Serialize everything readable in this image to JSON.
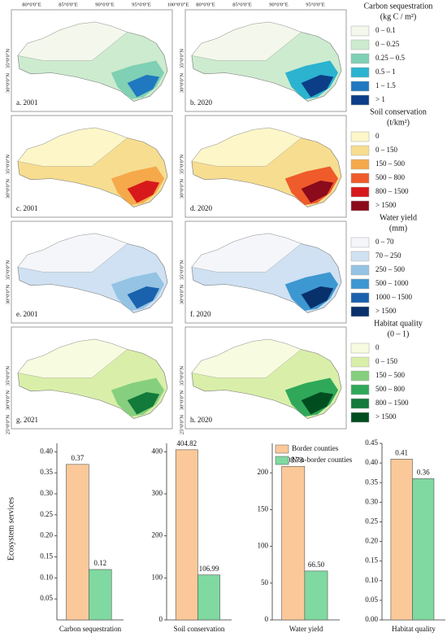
{
  "maps": {
    "lon_labels_left": [
      "80°0'0\"E",
      "85°0'0\"E",
      "90°0'0\"E",
      "95°0'0\"E",
      "100°0'0\"E"
    ],
    "lon_labels_right": [
      "80°0'0\"E",
      "85°0'0\"E",
      "90°0'0\"E",
      "95°0'0\"E"
    ],
    "rows": [
      {
        "panels": [
          "a. 2001",
          "b. 2020"
        ],
        "lat_labels": [
          "35°0'0\"N",
          "30°0'0\"N"
        ],
        "legend": {
          "title": "Carbon sequestration",
          "unit": "(kg C / m²)",
          "items": [
            {
              "label": "0 – 0.1",
              "color": "#f4f8ec"
            },
            {
              "label": "0 – 0.25",
              "color": "#cdebcf"
            },
            {
              "label": "0.25 – 0.5",
              "color": "#7fd0b4"
            },
            {
              "label": "0.5 – 1",
              "color": "#2bb3cf"
            },
            {
              "label": "1 – 1.5",
              "color": "#1f78c0"
            },
            {
              "label": "> 1",
              "color": "#0b3e86"
            }
          ]
        }
      },
      {
        "panels": [
          "c. 2001",
          "d. 2020"
        ],
        "lat_labels": [
          "35°0'0\"N",
          "30°0'0\"N"
        ],
        "legend": {
          "title": "Soil conservation",
          "unit": "(t/km²)",
          "items": [
            {
              "label": "0",
              "color": "#fdf6c8"
            },
            {
              "label": "0 – 150",
              "color": "#f7dd90"
            },
            {
              "label": "150 – 500",
              "color": "#f5a94a"
            },
            {
              "label": "500 – 800",
              "color": "#ef5b2b"
            },
            {
              "label": "800 – 1500",
              "color": "#d7191c"
            },
            {
              "label": "> 1500",
              "color": "#8b0a1c"
            }
          ]
        }
      },
      {
        "panels": [
          "e. 2001",
          "f. 2020"
        ],
        "lat_labels": [
          "35°0'0\"N",
          "30°0'0\"N"
        ],
        "legend": {
          "title": "Water yield",
          "unit": "(mm)",
          "items": [
            {
              "label": "0 – 70",
              "color": "#f4f6fa"
            },
            {
              "label": "70 – 250",
              "color": "#cfe1f2"
            },
            {
              "label": "250 – 500",
              "color": "#94c3e3"
            },
            {
              "label": "500 – 1000",
              "color": "#3d97d1"
            },
            {
              "label": "1000 – 1500",
              "color": "#1a62ad"
            },
            {
              "label": "> 1500",
              "color": "#08306b"
            }
          ]
        }
      },
      {
        "panels": [
          "g. 2021",
          "h. 2020"
        ],
        "lat_labels": [
          "35°0'0\"N",
          "30°0'0\"N",
          "25°0'0\"N"
        ],
        "legend": {
          "title": "Habitat quality",
          "unit": "(0 – 1)",
          "items": [
            {
              "label": "0",
              "color": "#f7fbe0"
            },
            {
              "label": "0 – 150",
              "color": "#d9efa9"
            },
            {
              "label": "150 – 500",
              "color": "#86cf7e"
            },
            {
              "label": "500 – 800",
              "color": "#2fa85a"
            },
            {
              "label": "800 – 1500",
              "color": "#127a3a"
            },
            {
              "label": "> 1500",
              "color": "#004d20"
            }
          ]
        }
      }
    ]
  },
  "chart_data": [
    {
      "type": "bar",
      "xlabel": "Carbon sequestration",
      "ylabel": "Ecosystem services",
      "series": [
        {
          "color": "#fbc999",
          "values": [
            0.37
          ]
        },
        {
          "color": "#7fd9a0",
          "values": [
            0.12
          ]
        }
      ],
      "ylim": [
        0,
        0.42
      ],
      "yticks": [
        {
          "value": 0.05,
          "label": "0.05"
        },
        {
          "value": 0.1,
          "label": "0.10"
        },
        {
          "value": 0.15,
          "label": "0.15"
        },
        {
          "value": 0.2,
          "label": "0.20"
        },
        {
          "value": 0.25,
          "label": "0.25"
        },
        {
          "value": 0.3,
          "label": "0.30"
        },
        {
          "value": 0.35,
          "label": "0.35"
        },
        {
          "value": 0.4,
          "label": "0.40"
        }
      ]
    },
    {
      "type": "bar",
      "xlabel": "Soil conservation",
      "series": [
        {
          "color": "#fbc999",
          "values": [
            404.82
          ]
        },
        {
          "color": "#7fd9a0",
          "values": [
            106.99
          ]
        }
      ],
      "ylim": [
        0,
        420
      ],
      "yticks": [
        0,
        100,
        200,
        300,
        400
      ]
    },
    {
      "type": "bar",
      "xlabel": "Water yield",
      "legend": true,
      "series": [
        {
          "name": "Border counties",
          "color": "#fbc999",
          "values": [
            208.73
          ]
        },
        {
          "name": "Non-border counties",
          "color": "#7fd9a0",
          "values": [
            66.5
          ],
          "value_labels": [
            "66.50"
          ]
        }
      ],
      "ylim": [
        0,
        240
      ],
      "yticks": [
        0,
        50,
        100,
        150,
        200
      ]
    },
    {
      "type": "bar",
      "xlabel": "Habitat quality",
      "series": [
        {
          "color": "#fbc999",
          "values": [
            0.41
          ]
        },
        {
          "color": "#7fd9a0",
          "values": [
            0.36
          ]
        }
      ],
      "ylim": [
        0,
        0.45
      ],
      "yticks": [
        {
          "value": 0,
          "label": "0.00"
        },
        {
          "value": 0.05,
          "label": "0.05"
        },
        {
          "value": 0.1,
          "label": "0.10"
        },
        {
          "value": 0.15,
          "label": "0.15"
        },
        {
          "value": 0.2,
          "label": "0.20"
        },
        {
          "value": 0.25,
          "label": "0.25"
        },
        {
          "value": 0.3,
          "label": "0.30"
        },
        {
          "value": 0.35,
          "label": "0.35"
        },
        {
          "value": 0.4,
          "label": "0.40"
        },
        {
          "value": 0.45,
          "label": "0.45"
        }
      ]
    }
  ]
}
